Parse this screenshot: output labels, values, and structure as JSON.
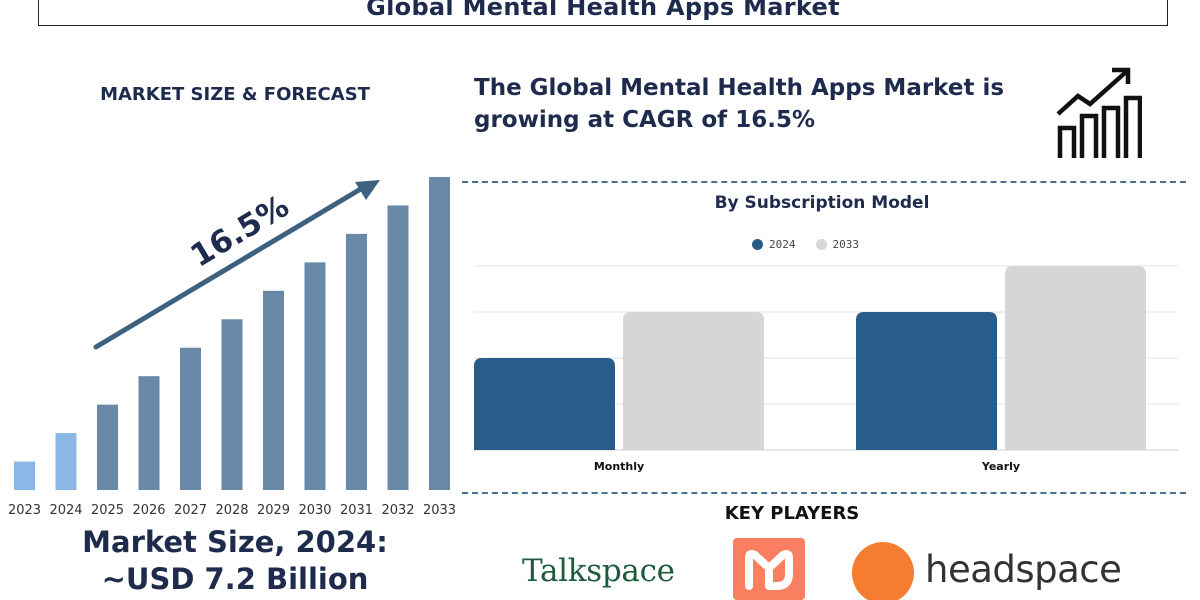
{
  "page_title": "Global Mental Health Apps Market",
  "left_panel": {
    "heading": "MARKET SIZE & FORECAST",
    "cagr_label": "16.5%",
    "market_size_line1": "Market Size, 2024:",
    "market_size_line2": "~USD 7.2 Billion"
  },
  "headline": {
    "line1": "The Global Mental Health Apps Market is",
    "line2": "growing at CAGR of 16.5%"
  },
  "subscription": {
    "title": "By Subscription Model"
  },
  "key_players": {
    "title": "KEY PLAYERS",
    "logos": [
      "Talkspace",
      "headspace"
    ]
  },
  "colors": {
    "navy": "#1e2b4d",
    "bar_light": "#8ab8e6",
    "bar_steel": "#6a89a8",
    "arrow": "#3d6281",
    "series_2024": "#2a5c8a",
    "series_2033": "#d6d6d6",
    "headspace_orange": "#f47d31",
    "m_logo_orange": "#fa7e60"
  },
  "chart_data": [
    {
      "type": "bar",
      "title": "MARKET SIZE & FORECAST",
      "categories": [
        "2023",
        "2024",
        "2025",
        "2026",
        "2027",
        "2028",
        "2029",
        "2030",
        "2031",
        "2032",
        "2033"
      ],
      "values": [
        1,
        2,
        3,
        4,
        5,
        6,
        7,
        8,
        9,
        10,
        11
      ],
      "highlight_categories": [
        "2023",
        "2024"
      ],
      "annotation": "16.5%",
      "grid": false
    },
    {
      "type": "bar",
      "title": "By Subscription Model",
      "categories": [
        "Monthly",
        "Yearly"
      ],
      "series": [
        {
          "name": "2024",
          "values": [
            2,
            3
          ]
        },
        {
          "name": "2033",
          "values": [
            3,
            4
          ]
        }
      ],
      "ylim": [
        0,
        4
      ],
      "grid": true,
      "legend": "top-center"
    }
  ]
}
